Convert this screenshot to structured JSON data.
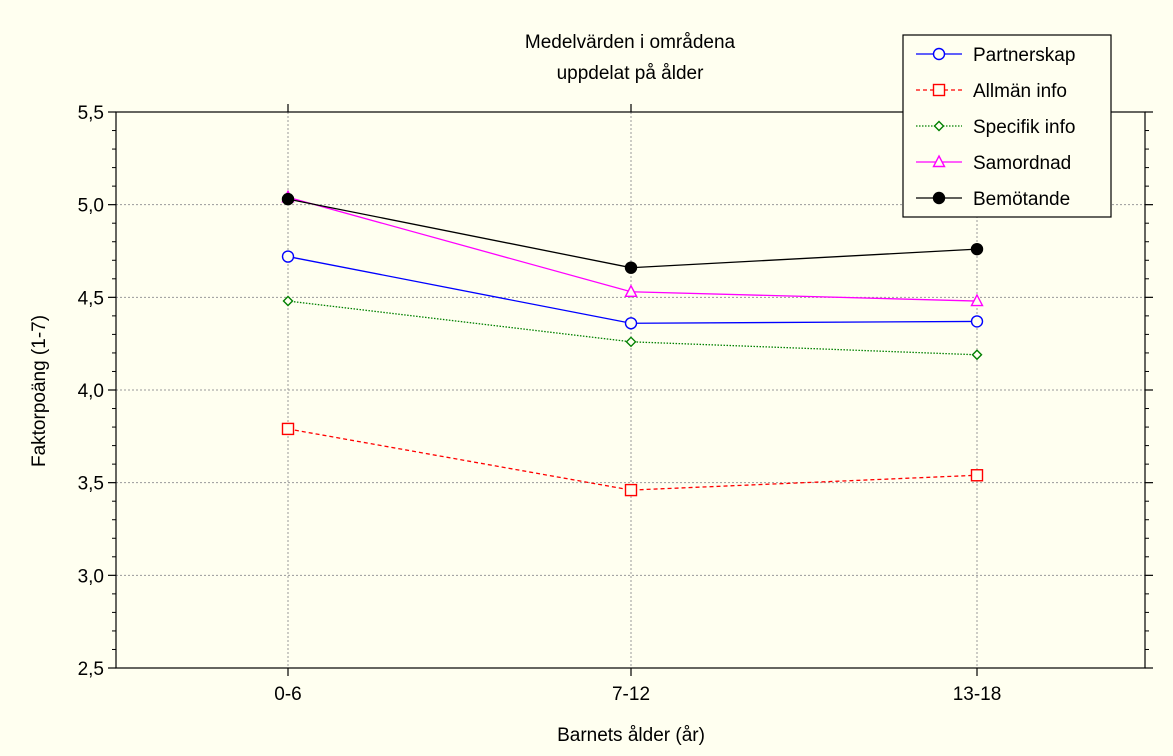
{
  "chart_data": {
    "type": "line",
    "title_lines": [
      "Medelvärden i områdena",
      "uppdelat på ålder"
    ],
    "xlabel": "Barnets ålder (år)",
    "ylabel": "Faktorpoäng (1-7)",
    "categories": [
      "0-6",
      "7-12",
      "13-18"
    ],
    "ylim": [
      2.5,
      5.5
    ],
    "yticks": [
      "2,5",
      "3,0",
      "3,5",
      "4,0",
      "4,5",
      "5,0",
      "5,5"
    ],
    "grid": true,
    "legend_position": "top-right",
    "background": "#fffff0",
    "series": [
      {
        "name": "Partnerskap",
        "values": [
          4.72,
          4.36,
          4.37
        ],
        "color": "#0000ff",
        "marker": "circle-open",
        "dash": "solid"
      },
      {
        "name": "Allmän info",
        "values": [
          3.79,
          3.46,
          3.54
        ],
        "color": "#ff0000",
        "marker": "square-open",
        "dash": "dashed"
      },
      {
        "name": "Specifik info",
        "values": [
          4.48,
          4.26,
          4.19
        ],
        "color": "#008000",
        "marker": "diamond-open",
        "dash": "dotted"
      },
      {
        "name": "Samordnad",
        "values": [
          5.04,
          4.53,
          4.48
        ],
        "color": "#ff00ff",
        "marker": "triangle-open",
        "dash": "solid"
      },
      {
        "name": "Bemötande",
        "values": [
          5.03,
          4.66,
          4.76
        ],
        "color": "#000000",
        "marker": "circle-filled",
        "dash": "solid"
      }
    ]
  }
}
